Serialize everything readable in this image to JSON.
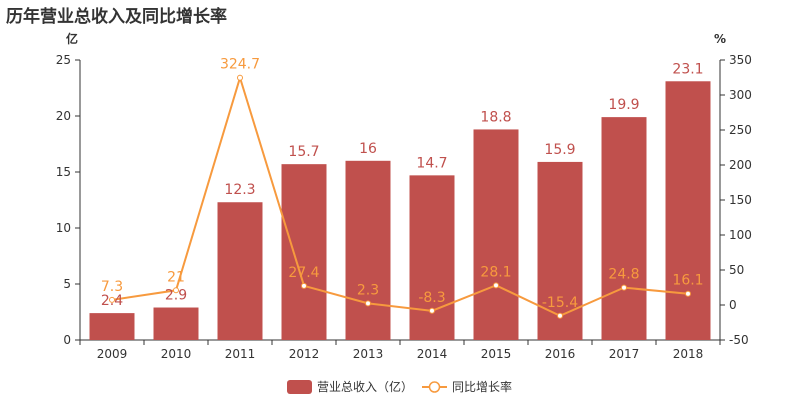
{
  "chart_data": {
    "type": "bar",
    "title": "历年营业总收入及同比增长率",
    "categories": [
      "2009",
      "2010",
      "2011",
      "2012",
      "2013",
      "2014",
      "2015",
      "2016",
      "2017",
      "2018"
    ],
    "series": [
      {
        "name": "营业总收入（亿）",
        "type": "bar",
        "axis": "left",
        "values": [
          2.4,
          2.9,
          12.3,
          15.7,
          16,
          14.7,
          18.8,
          15.9,
          19.9,
          23.1
        ],
        "labels": [
          "2.4",
          "2.9",
          "12.3",
          "15.7",
          "16",
          "14.7",
          "18.8",
          "15.9",
          "19.9",
          "23.1"
        ]
      },
      {
        "name": "同比增长率",
        "type": "line",
        "axis": "right",
        "values": [
          7.3,
          21,
          324.7,
          27.4,
          2.3,
          -8.3,
          28.1,
          -15.4,
          24.8,
          16.1
        ],
        "labels": [
          "7.3",
          "21",
          "324.7",
          "27.4",
          "2.3",
          "-8.3",
          "28.1",
          "-15.4",
          "24.8",
          "16.1"
        ]
      }
    ],
    "y_left": {
      "unit": "亿",
      "ylim": [
        0,
        25
      ],
      "ticks": [
        0,
        5,
        10,
        15,
        20,
        25
      ]
    },
    "y_right": {
      "unit": "%",
      "ylim": [
        -50,
        350
      ],
      "ticks": [
        -50,
        0,
        50,
        100,
        150,
        200,
        250,
        300,
        350
      ]
    },
    "grid": false,
    "legend_position": "bottom-center",
    "colors": {
      "bar": "#c0504d",
      "line": "#f79a3e",
      "bar_label": "#c0504d",
      "line_label": "#f79a3e"
    }
  }
}
